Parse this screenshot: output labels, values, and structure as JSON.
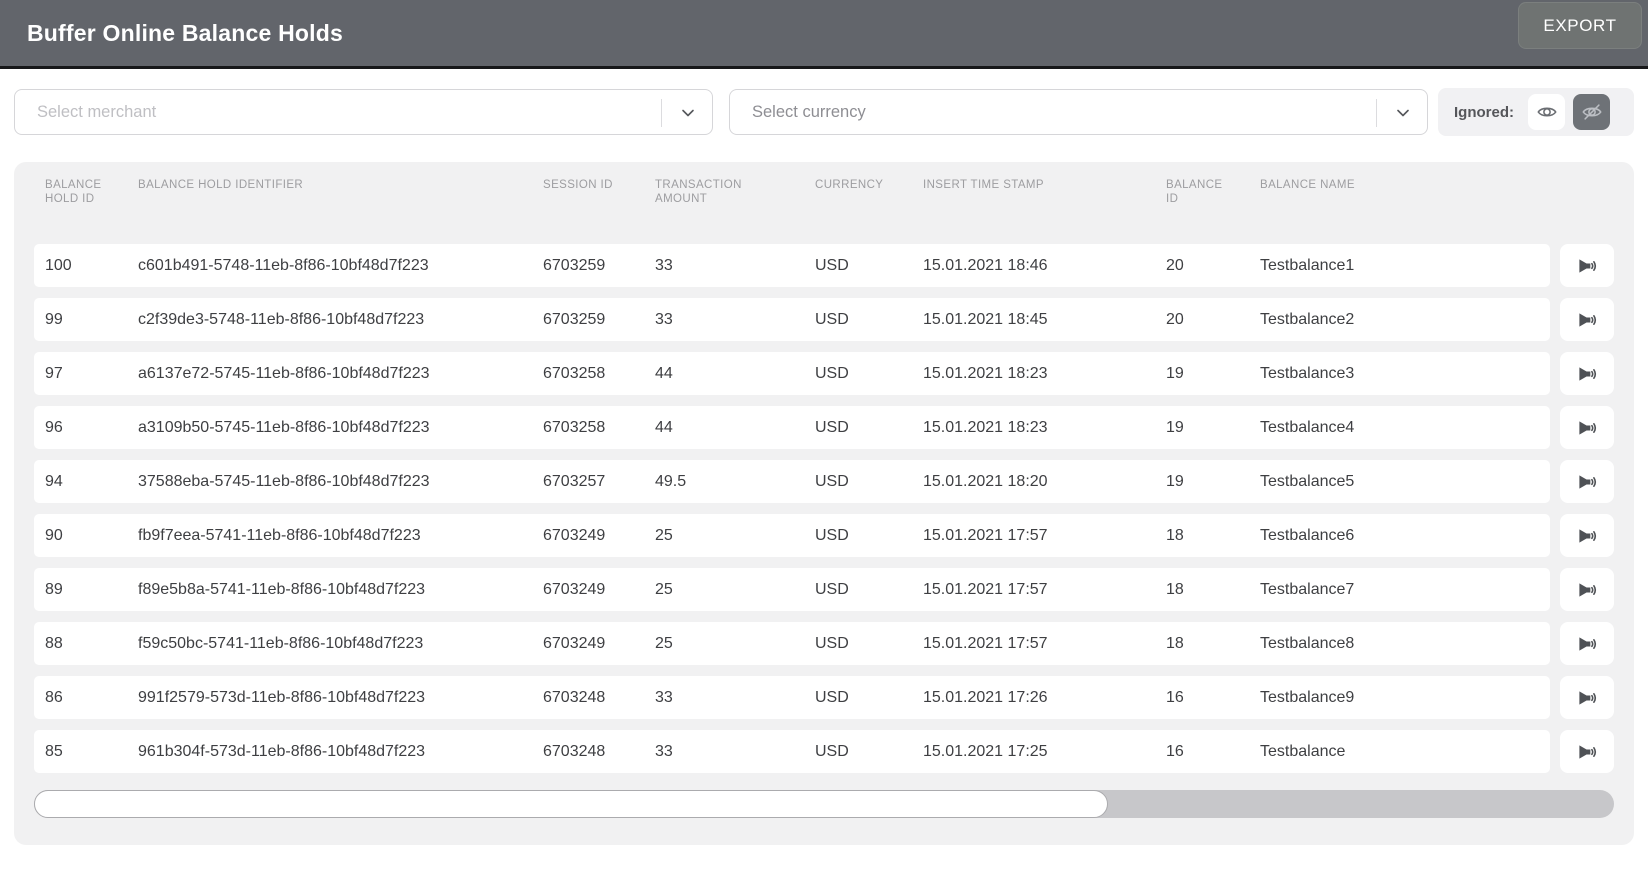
{
  "colors": {
    "topbar_bg": "#62656b",
    "topbar_border": "#17181a",
    "export_button_bg": "#6f7372",
    "table_card_bg": "#f1f1f2",
    "row_bg": "#ffffff",
    "text_primary": "#3e3f42",
    "text_column_header": "#9d9da0",
    "ignored_active_bg": "#6e7277",
    "scrollbar_track": "#c7c7ca",
    "scrollbar_thumb": "#ffffff"
  },
  "topbar": {
    "title": "Buffer Online Balance Holds",
    "export_label": "EXPORT"
  },
  "filters": {
    "merchant": {
      "placeholder": "Select merchant",
      "icon": "chevron-down"
    },
    "currency": {
      "placeholder": "Select currency",
      "icon": "chevron-down"
    },
    "ignored": {
      "label": "Ignored:",
      "show_icon": "eye",
      "hide_icon": "eye-off",
      "active_toggle": "hide"
    }
  },
  "table": {
    "columns": [
      {
        "key": "balance_hold_id",
        "label": "BALANCE HOLD ID"
      },
      {
        "key": "balance_hold_identifier",
        "label": "BALANCE HOLD IDENTIFIER"
      },
      {
        "key": "session_id",
        "label": "SESSION ID"
      },
      {
        "key": "transaction_amount",
        "label": "TRANSACTION AMOUNT"
      },
      {
        "key": "currency",
        "label": "CURRENCY"
      },
      {
        "key": "insert_time_stamp",
        "label": "INSERT TIME STAMP"
      },
      {
        "key": "balance_id",
        "label": "BALANCE ID"
      },
      {
        "key": "balance_name",
        "label": "BALANCE NAME"
      }
    ],
    "row_action_icon": "volume",
    "rows": [
      {
        "balance_hold_id": "100",
        "balance_hold_identifier": "c601b491-5748-11eb-8f86-10bf48d7f223",
        "session_id": "6703259",
        "transaction_amount": "33",
        "currency": "USD",
        "insert_time_stamp": "15.01.2021 18:46",
        "balance_id": "20",
        "balance_name": "Testbalance1"
      },
      {
        "balance_hold_id": "99",
        "balance_hold_identifier": "c2f39de3-5748-11eb-8f86-10bf48d7f223",
        "session_id": "6703259",
        "transaction_amount": "33",
        "currency": "USD",
        "insert_time_stamp": "15.01.2021 18:45",
        "balance_id": "20",
        "balance_name": "Testbalance2"
      },
      {
        "balance_hold_id": "97",
        "balance_hold_identifier": "a6137e72-5745-11eb-8f86-10bf48d7f223",
        "session_id": "6703258",
        "transaction_amount": "44",
        "currency": "USD",
        "insert_time_stamp": "15.01.2021 18:23",
        "balance_id": "19",
        "balance_name": "Testbalance3"
      },
      {
        "balance_hold_id": "96",
        "balance_hold_identifier": "a3109b50-5745-11eb-8f86-10bf48d7f223",
        "session_id": "6703258",
        "transaction_amount": "44",
        "currency": "USD",
        "insert_time_stamp": "15.01.2021 18:23",
        "balance_id": "19",
        "balance_name": "Testbalance4"
      },
      {
        "balance_hold_id": "94",
        "balance_hold_identifier": "37588eba-5745-11eb-8f86-10bf48d7f223",
        "session_id": "6703257",
        "transaction_amount": "49.5",
        "currency": "USD",
        "insert_time_stamp": "15.01.2021 18:20",
        "balance_id": "19",
        "balance_name": "Testbalance5"
      },
      {
        "balance_hold_id": "90",
        "balance_hold_identifier": "fb9f7eea-5741-11eb-8f86-10bf48d7f223",
        "session_id": "6703249",
        "transaction_amount": "25",
        "currency": "USD",
        "insert_time_stamp": "15.01.2021 17:57",
        "balance_id": "18",
        "balance_name": "Testbalance6"
      },
      {
        "balance_hold_id": "89",
        "balance_hold_identifier": "f89e5b8a-5741-11eb-8f86-10bf48d7f223",
        "session_id": "6703249",
        "transaction_amount": "25",
        "currency": "USD",
        "insert_time_stamp": "15.01.2021 17:57",
        "balance_id": "18",
        "balance_name": "Testbalance7"
      },
      {
        "balance_hold_id": "88",
        "balance_hold_identifier": "f59c50bc-5741-11eb-8f86-10bf48d7f223",
        "session_id": "6703249",
        "transaction_amount": "25",
        "currency": "USD",
        "insert_time_stamp": "15.01.2021 17:57",
        "balance_id": "18",
        "balance_name": "Testbalance8"
      },
      {
        "balance_hold_id": "86",
        "balance_hold_identifier": "991f2579-573d-11eb-8f86-10bf48d7f223",
        "session_id": "6703248",
        "transaction_amount": "33",
        "currency": "USD",
        "insert_time_stamp": "15.01.2021 17:26",
        "balance_id": "16",
        "balance_name": "Testbalance9"
      },
      {
        "balance_hold_id": "85",
        "balance_hold_identifier": "961b304f-573d-11eb-8f86-10bf48d7f223",
        "session_id": "6703248",
        "transaction_amount": "33",
        "currency": "USD",
        "insert_time_stamp": "15.01.2021 17:25",
        "balance_id": "16",
        "balance_name": "Testbalance"
      }
    ],
    "hscrollbar": {
      "thumb_percent": 68
    }
  }
}
